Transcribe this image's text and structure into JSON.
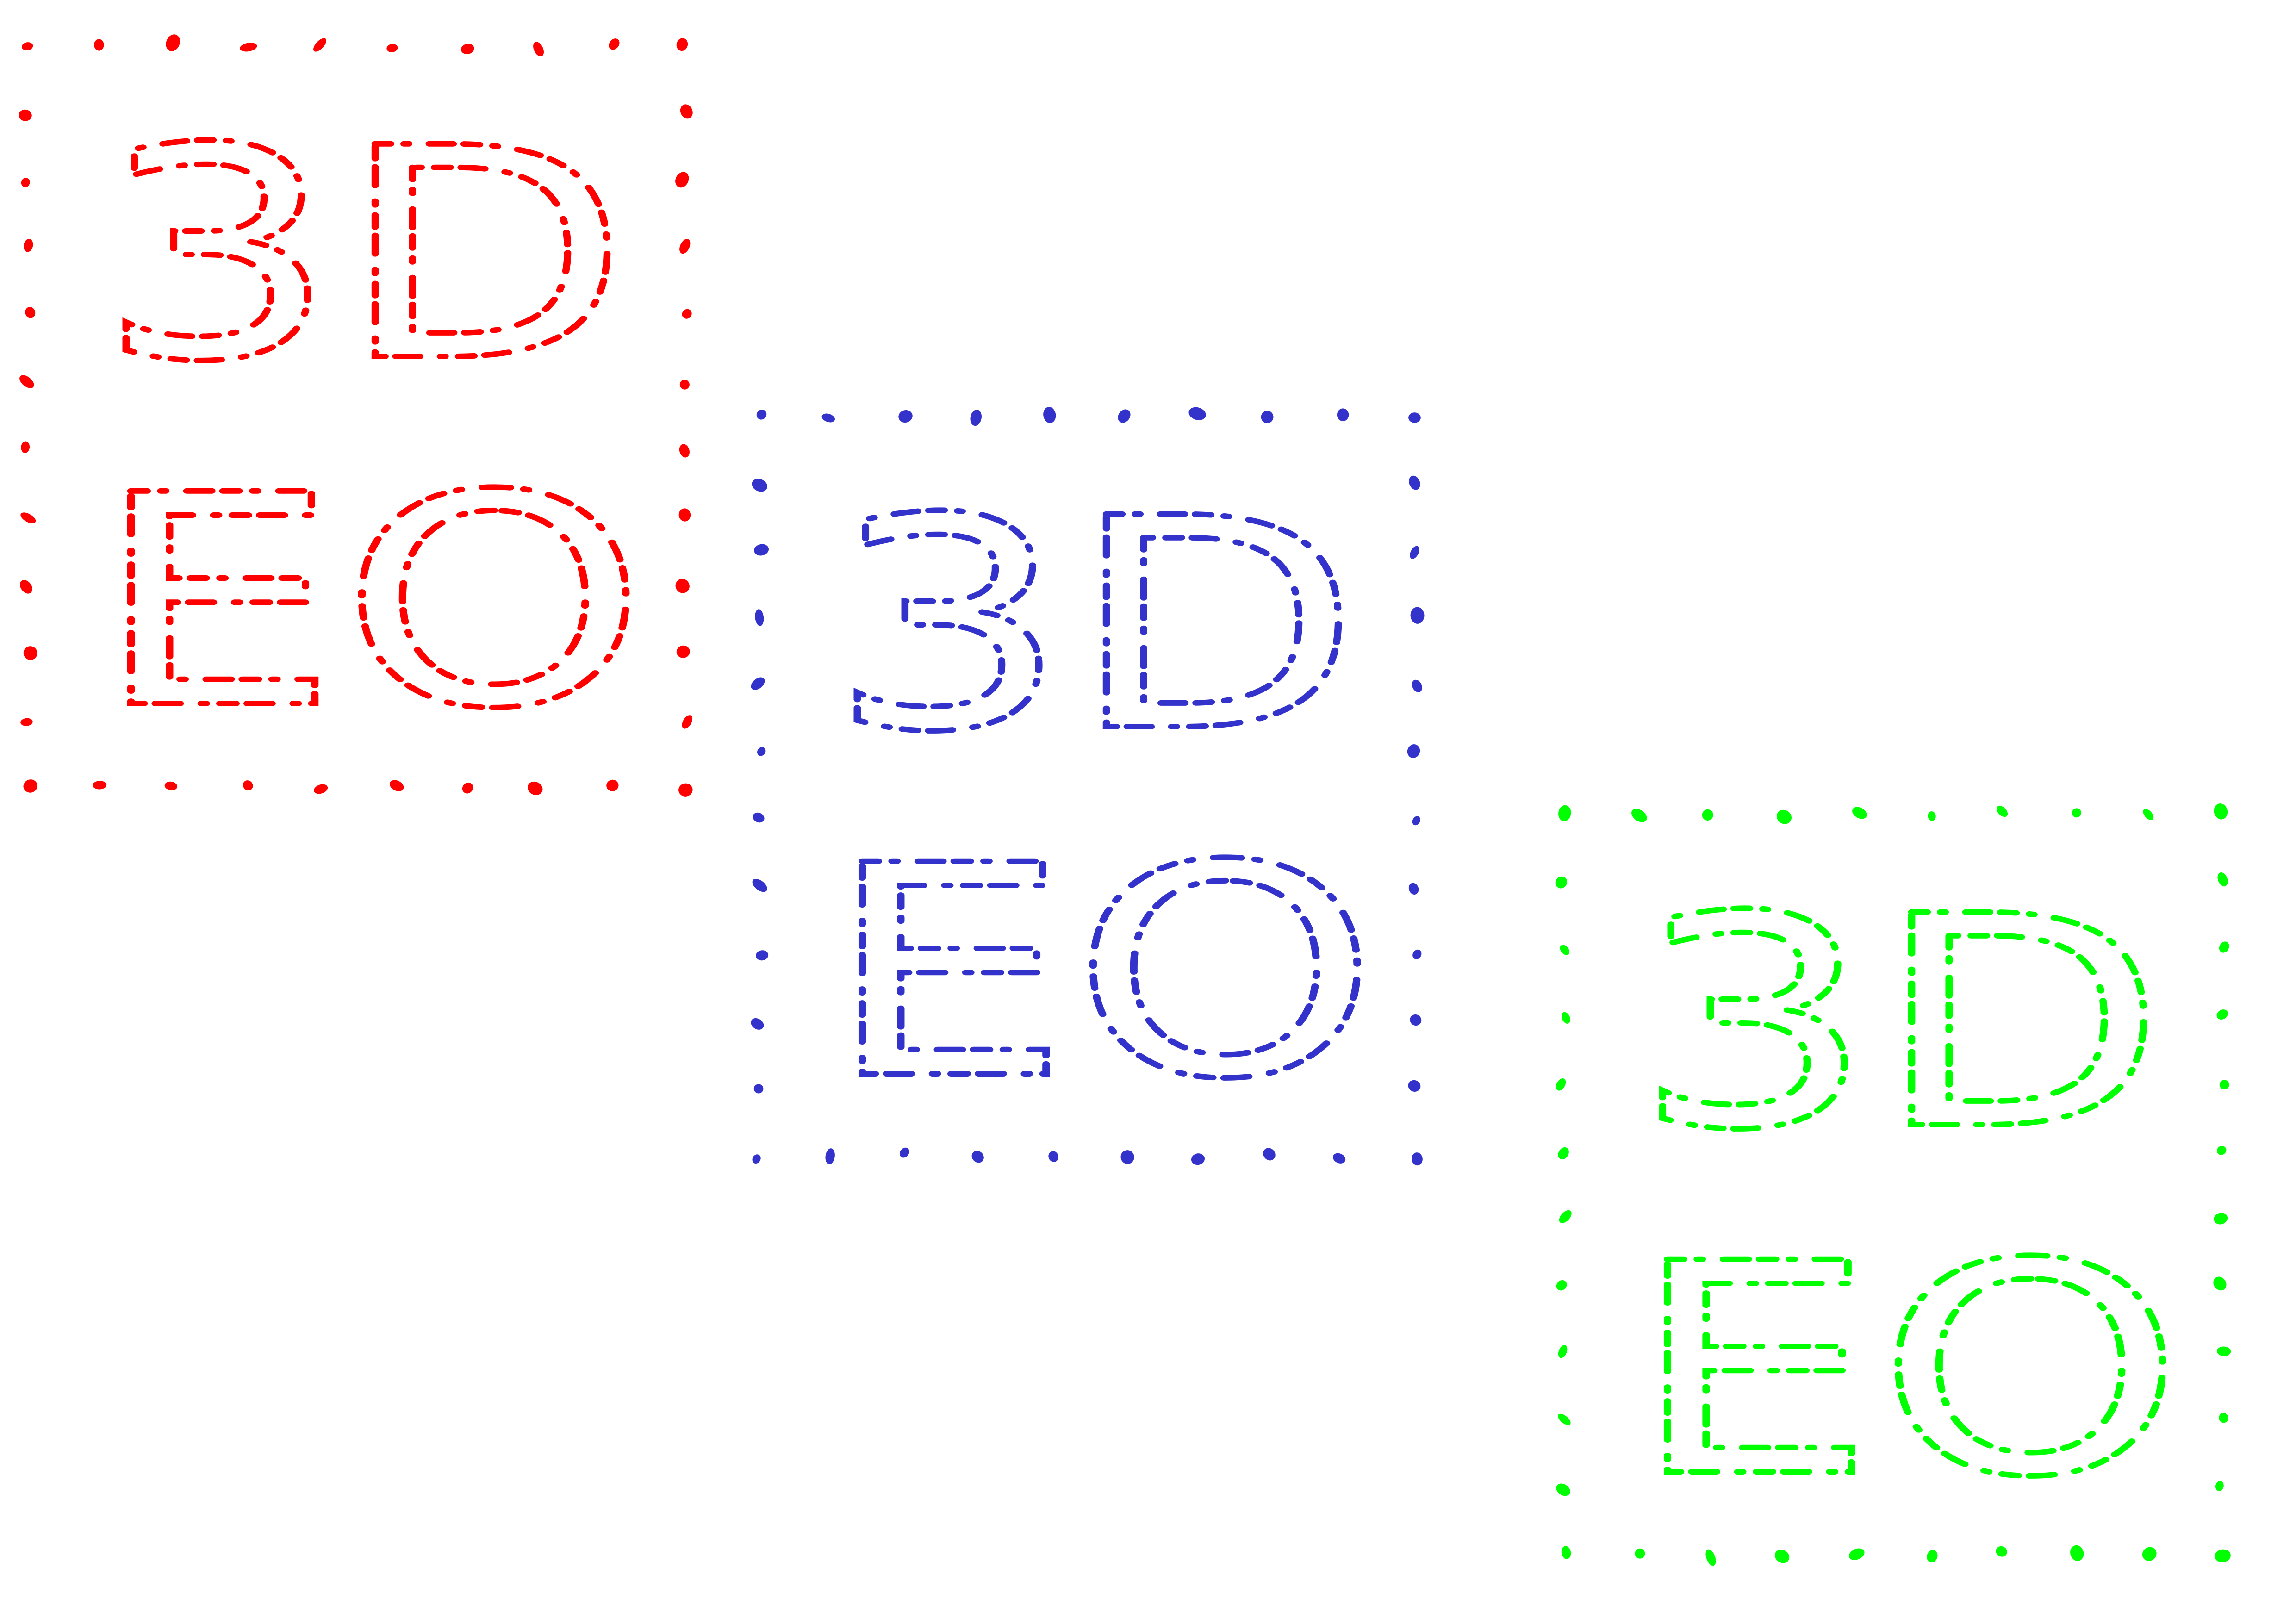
{
  "logos": [
    {
      "name": "red",
      "color": "#ff0000",
      "row1": "3D",
      "row2": "EO"
    },
    {
      "name": "blue",
      "color": "#3333cc",
      "row1": "3D",
      "row2": "EO"
    },
    {
      "name": "green",
      "color": "#00ff00",
      "row1": "3D",
      "row2": "EO"
    }
  ]
}
